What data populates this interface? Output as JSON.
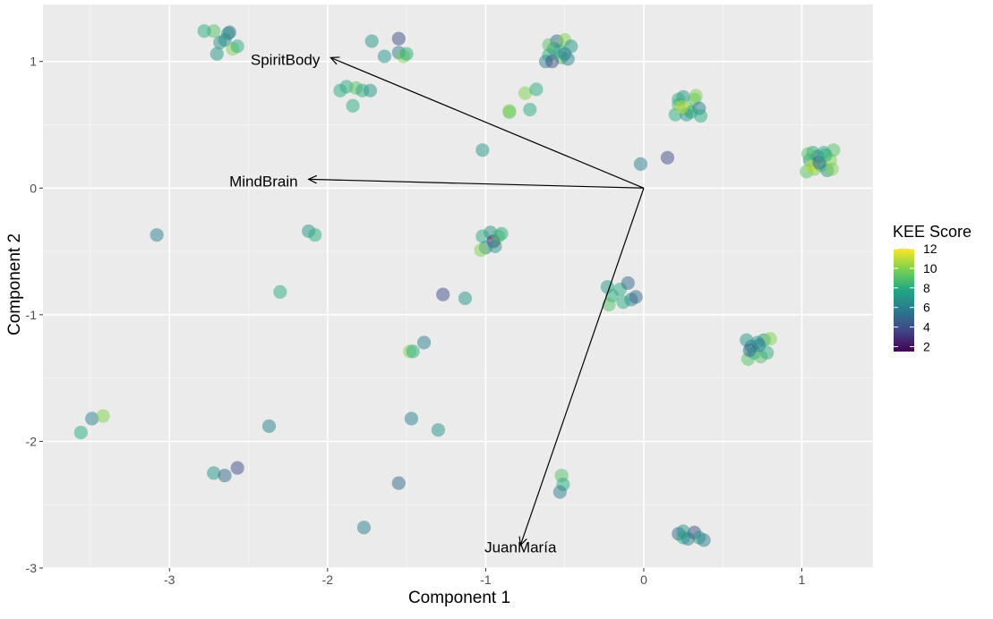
{
  "chart_data": {
    "type": "scatter",
    "title": "",
    "xlabel": "Component 1",
    "ylabel": "Component 2",
    "xlim": [
      -3.8,
      1.45
    ],
    "ylim": [
      -3.0,
      1.45
    ],
    "x_ticks": [
      -3,
      -2,
      -1,
      0,
      1
    ],
    "y_ticks": [
      -3,
      -2,
      -1,
      0,
      1
    ],
    "x_tick_labels": [
      "-3",
      "-2",
      "-1",
      "0",
      "1"
    ],
    "y_tick_labels": [
      "-3",
      "-2",
      "-1",
      "0",
      "1"
    ],
    "grid": true,
    "background_color": "#EBEBEB",
    "legend": {
      "title": "KEE Score",
      "placement": "right",
      "min": 1.5,
      "max": 12,
      "ticks": [
        2,
        4,
        6,
        8,
        10,
        12
      ],
      "tick_labels": [
        "2",
        "4",
        "6",
        "8",
        "10",
        "12"
      ],
      "colors": [
        "#440154",
        "#414487",
        "#2A788E",
        "#22A884",
        "#7AD151",
        "#FDE725"
      ]
    },
    "vectors": [
      {
        "label": "SpiritBody",
        "x": -1.98,
        "y": 1.03
      },
      {
        "label": "MindBrain",
        "x": -2.12,
        "y": 0.07
      },
      {
        "label": "JuanMaría",
        "x": -0.78,
        "y": -2.82
      }
    ],
    "points": [
      {
        "x": -2.72,
        "y": 1.24,
        "kee": 9
      },
      {
        "x": -2.65,
        "y": 1.17,
        "kee": 6
      },
      {
        "x": -2.62,
        "y": 1.23,
        "kee": 5
      },
      {
        "x": -2.68,
        "y": 1.15,
        "kee": 7
      },
      {
        "x": -2.6,
        "y": 1.1,
        "kee": 10
      },
      {
        "x": -2.7,
        "y": 1.06,
        "kee": 7
      },
      {
        "x": -2.57,
        "y": 1.12,
        "kee": 8
      },
      {
        "x": -2.78,
        "y": 1.24,
        "kee": 8
      },
      {
        "x": -2.63,
        "y": 1.22,
        "kee": 7
      },
      {
        "x": -1.72,
        "y": 1.16,
        "kee": 7
      },
      {
        "x": -1.55,
        "y": 1.18,
        "kee": 4
      },
      {
        "x": -1.64,
        "y": 1.04,
        "kee": 7
      },
      {
        "x": -1.55,
        "y": 1.07,
        "kee": 6
      },
      {
        "x": -1.52,
        "y": 1.04,
        "kee": 10
      },
      {
        "x": -1.5,
        "y": 1.06,
        "kee": 8
      },
      {
        "x": -1.92,
        "y": 0.77,
        "kee": 8
      },
      {
        "x": -1.88,
        "y": 0.8,
        "kee": 8
      },
      {
        "x": -1.82,
        "y": 0.79,
        "kee": 9
      },
      {
        "x": -1.78,
        "y": 0.77,
        "kee": 8
      },
      {
        "x": -1.73,
        "y": 0.77,
        "kee": 7
      },
      {
        "x": -1.84,
        "y": 0.65,
        "kee": 8
      },
      {
        "x": -0.75,
        "y": 0.75,
        "kee": 10
      },
      {
        "x": -0.68,
        "y": 0.78,
        "kee": 8
      },
      {
        "x": -0.72,
        "y": 0.62,
        "kee": 8
      },
      {
        "x": -0.85,
        "y": 0.6,
        "kee": 9
      },
      {
        "x": -0.85,
        "y": 0.61,
        "kee": 10
      },
      {
        "x": -0.62,
        "y": 1.0,
        "kee": 6
      },
      {
        "x": -0.6,
        "y": 1.05,
        "kee": 8
      },
      {
        "x": -0.57,
        "y": 1.1,
        "kee": 7
      },
      {
        "x": -0.55,
        "y": 1.16,
        "kee": 5
      },
      {
        "x": -0.52,
        "y": 1.03,
        "kee": 9
      },
      {
        "x": -0.5,
        "y": 1.17,
        "kee": 10
      },
      {
        "x": -0.48,
        "y": 1.02,
        "kee": 6
      },
      {
        "x": -0.46,
        "y": 1.12,
        "kee": 7
      },
      {
        "x": -0.58,
        "y": 1.0,
        "kee": 4
      },
      {
        "x": -0.53,
        "y": 1.08,
        "kee": 8
      },
      {
        "x": -0.6,
        "y": 1.13,
        "kee": 9
      },
      {
        "x": -0.5,
        "y": 1.06,
        "kee": 6
      },
      {
        "x": 0.2,
        "y": 0.58,
        "kee": 8
      },
      {
        "x": 0.22,
        "y": 0.66,
        "kee": 9
      },
      {
        "x": 0.25,
        "y": 0.72,
        "kee": 7
      },
      {
        "x": 0.28,
        "y": 0.62,
        "kee": 10
      },
      {
        "x": 0.3,
        "y": 0.6,
        "kee": 8
      },
      {
        "x": 0.32,
        "y": 0.7,
        "kee": 9
      },
      {
        "x": 0.35,
        "y": 0.63,
        "kee": 6
      },
      {
        "x": 0.36,
        "y": 0.57,
        "kee": 8
      },
      {
        "x": 0.22,
        "y": 0.7,
        "kee": 8
      },
      {
        "x": 0.27,
        "y": 0.58,
        "kee": 7
      },
      {
        "x": 0.33,
        "y": 0.73,
        "kee": 10
      },
      {
        "x": 0.24,
        "y": 0.64,
        "kee": 11
      },
      {
        "x": 1.03,
        "y": 0.13,
        "kee": 9
      },
      {
        "x": 1.05,
        "y": 0.22,
        "kee": 7
      },
      {
        "x": 1.07,
        "y": 0.28,
        "kee": 8
      },
      {
        "x": 1.08,
        "y": 0.15,
        "kee": 10
      },
      {
        "x": 1.1,
        "y": 0.25,
        "kee": 6
      },
      {
        "x": 1.12,
        "y": 0.18,
        "kee": 9
      },
      {
        "x": 1.14,
        "y": 0.28,
        "kee": 8
      },
      {
        "x": 1.16,
        "y": 0.14,
        "kee": 7
      },
      {
        "x": 1.18,
        "y": 0.22,
        "kee": 10
      },
      {
        "x": 1.2,
        "y": 0.3,
        "kee": 9
      },
      {
        "x": 1.06,
        "y": 0.17,
        "kee": 11
      },
      {
        "x": 1.11,
        "y": 0.2,
        "kee": 5
      },
      {
        "x": 1.15,
        "y": 0.26,
        "kee": 8
      },
      {
        "x": 1.19,
        "y": 0.15,
        "kee": 10
      },
      {
        "x": 1.04,
        "y": 0.27,
        "kee": 9
      },
      {
        "x": -0.02,
        "y": 0.19,
        "kee": 6
      },
      {
        "x": 0.15,
        "y": 0.24,
        "kee": 4
      },
      {
        "x": -1.02,
        "y": 0.3,
        "kee": 7
      },
      {
        "x": -1.02,
        "y": -0.38,
        "kee": 8
      },
      {
        "x": -0.97,
        "y": -0.35,
        "kee": 7
      },
      {
        "x": -0.95,
        "y": -0.42,
        "kee": 2
      },
      {
        "x": -0.92,
        "y": -0.38,
        "kee": 9
      },
      {
        "x": -1.0,
        "y": -0.47,
        "kee": 6
      },
      {
        "x": -0.94,
        "y": -0.46,
        "kee": 7
      },
      {
        "x": -1.03,
        "y": -0.49,
        "kee": 10
      },
      {
        "x": -0.9,
        "y": -0.36,
        "kee": 8
      },
      {
        "x": -3.08,
        "y": -0.37,
        "kee": 6
      },
      {
        "x": -2.12,
        "y": -0.34,
        "kee": 7
      },
      {
        "x": -2.08,
        "y": -0.37,
        "kee": 8
      },
      {
        "x": -2.3,
        "y": -0.82,
        "kee": 8
      },
      {
        "x": -1.27,
        "y": -0.84,
        "kee": 4
      },
      {
        "x": -1.13,
        "y": -0.87,
        "kee": 7
      },
      {
        "x": -0.23,
        "y": -0.78,
        "kee": 7
      },
      {
        "x": -0.2,
        "y": -0.85,
        "kee": 8
      },
      {
        "x": -0.22,
        "y": -0.92,
        "kee": 9
      },
      {
        "x": -0.15,
        "y": -0.8,
        "kee": 8
      },
      {
        "x": -0.1,
        "y": -0.75,
        "kee": 5
      },
      {
        "x": -0.08,
        "y": -0.88,
        "kee": 6
      },
      {
        "x": -0.05,
        "y": -0.86,
        "kee": 5
      },
      {
        "x": -0.13,
        "y": -0.9,
        "kee": 8
      },
      {
        "x": 0.65,
        "y": -1.2,
        "kee": 7
      },
      {
        "x": 0.66,
        "y": -1.35,
        "kee": 9
      },
      {
        "x": 0.68,
        "y": -1.25,
        "kee": 6
      },
      {
        "x": 0.7,
        "y": -1.3,
        "kee": 8
      },
      {
        "x": 0.72,
        "y": -1.22,
        "kee": 7
      },
      {
        "x": 0.74,
        "y": -1.33,
        "kee": 9
      },
      {
        "x": 0.76,
        "y": -1.2,
        "kee": 7
      },
      {
        "x": 0.78,
        "y": -1.3,
        "kee": 8
      },
      {
        "x": 0.8,
        "y": -1.19,
        "kee": 10
      },
      {
        "x": 0.67,
        "y": -1.28,
        "kee": 5
      },
      {
        "x": 0.73,
        "y": -1.24,
        "kee": 6
      },
      {
        "x": -1.48,
        "y": -1.29,
        "kee": 10
      },
      {
        "x": -1.46,
        "y": -1.29,
        "kee": 8
      },
      {
        "x": -1.39,
        "y": -1.22,
        "kee": 6
      },
      {
        "x": -1.47,
        "y": -1.82,
        "kee": 6
      },
      {
        "x": -1.3,
        "y": -1.91,
        "kee": 7
      },
      {
        "x": -2.37,
        "y": -1.88,
        "kee": 6
      },
      {
        "x": -3.49,
        "y": -1.82,
        "kee": 6
      },
      {
        "x": -3.42,
        "y": -1.8,
        "kee": 10
      },
      {
        "x": -3.56,
        "y": -1.93,
        "kee": 8
      },
      {
        "x": -2.72,
        "y": -2.25,
        "kee": 7
      },
      {
        "x": -2.65,
        "y": -2.27,
        "kee": 5
      },
      {
        "x": -2.57,
        "y": -2.21,
        "kee": 4
      },
      {
        "x": -1.55,
        "y": -2.33,
        "kee": 5
      },
      {
        "x": -1.77,
        "y": -2.68,
        "kee": 6
      },
      {
        "x": -0.52,
        "y": -2.27,
        "kee": 9
      },
      {
        "x": -0.51,
        "y": -2.34,
        "kee": 8
      },
      {
        "x": -0.53,
        "y": -2.4,
        "kee": 6
      },
      {
        "x": 0.22,
        "y": -2.73,
        "kee": 5
      },
      {
        "x": 0.25,
        "y": -2.76,
        "kee": 8
      },
      {
        "x": 0.28,
        "y": -2.77,
        "kee": 6
      },
      {
        "x": 0.32,
        "y": -2.72,
        "kee": 4
      },
      {
        "x": 0.35,
        "y": -2.76,
        "kee": 7
      },
      {
        "x": 0.38,
        "y": -2.78,
        "kee": 6
      },
      {
        "x": 0.25,
        "y": -2.71,
        "kee": 7
      }
    ]
  }
}
